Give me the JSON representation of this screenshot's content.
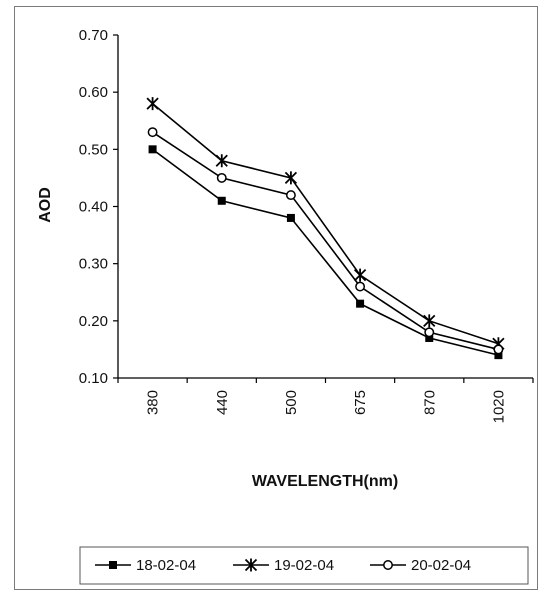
{
  "chart_data": {
    "type": "line",
    "title": "",
    "xlabel": "WAVELENGTH(nm)",
    "ylabel": "AOD",
    "categories": [
      "380",
      "440",
      "500",
      "675",
      "870",
      "1020"
    ],
    "ylim": [
      0.1,
      0.7
    ],
    "yticks": [
      "0.10",
      "0.20",
      "0.30",
      "0.40",
      "0.50",
      "0.60",
      "0.70"
    ],
    "grid": false,
    "legend_position": "bottom",
    "series": [
      {
        "name": "18-02-04",
        "marker": "square",
        "color": "#000000",
        "values": [
          0.5,
          0.41,
          0.38,
          0.23,
          0.17,
          0.14
        ]
      },
      {
        "name": "19-02-04",
        "marker": "star",
        "color": "#000000",
        "values": [
          0.58,
          0.48,
          0.45,
          0.28,
          0.2,
          0.16
        ]
      },
      {
        "name": "20-02-04",
        "marker": "circle",
        "color": "#000000",
        "values": [
          0.53,
          0.45,
          0.42,
          0.26,
          0.18,
          0.15
        ]
      }
    ]
  }
}
